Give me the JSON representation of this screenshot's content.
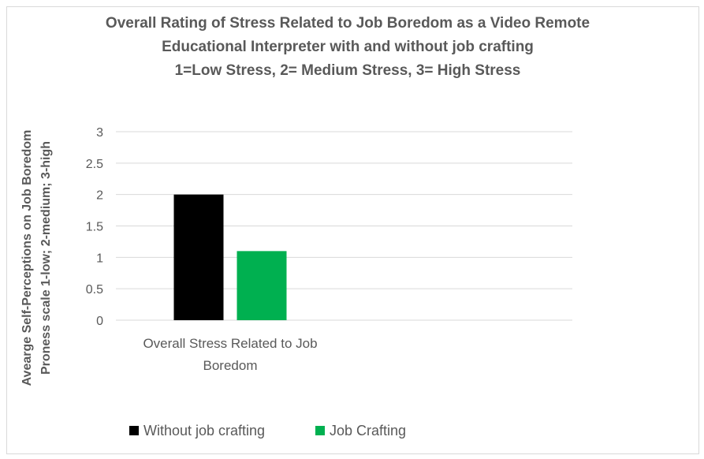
{
  "chart_data": {
    "type": "bar",
    "title_lines": [
      "Overall Rating of Stress Related to Job Boredom as a Video Remote",
      "Educational Interpreter  with and without job crafting",
      "1=Low Stress, 2= Medium Stress, 3= High Stress"
    ],
    "ylabel_lines": [
      "Avearge Self-Perceptions on Job Boredom",
      "Proness scale 1-low; 2-medium; 3-high"
    ],
    "xlabel": "",
    "categories": [
      "Overall Stress Related to Job Boredom"
    ],
    "category_label_lines": [
      "Overall Stress Related to Job",
      "Boredom"
    ],
    "series": [
      {
        "name": "Without job crafting",
        "values": [
          2.0
        ],
        "color": "#000000"
      },
      {
        "name": "Job Crafting",
        "values": [
          1.1
        ],
        "color": "#00b050"
      }
    ],
    "ylim": [
      0,
      3
    ],
    "yticks": [
      "0",
      "0.5",
      "1",
      "1.5",
      "2",
      "2.5",
      "3"
    ],
    "grid": true,
    "legend_position": "bottom"
  }
}
